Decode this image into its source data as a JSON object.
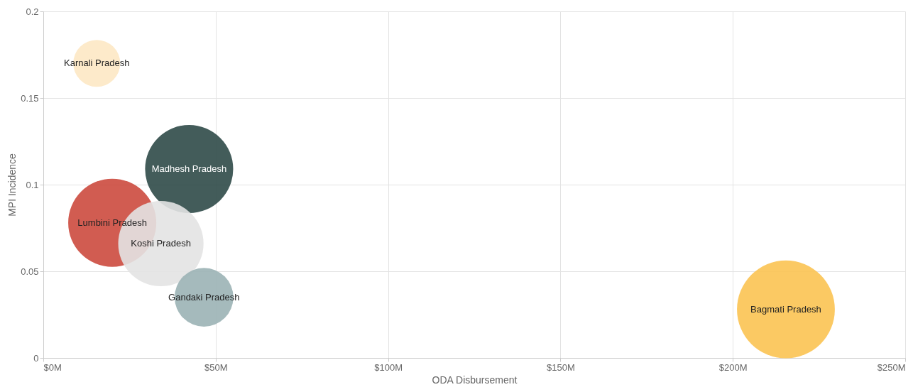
{
  "chart_data": {
    "type": "bubble",
    "xlabel": "ODA Disbursement",
    "ylabel": "MPI Incidence",
    "series": [
      {
        "name": "Karnali Pradesh",
        "color": "#fde8c4",
        "x": [
          15.5
        ],
        "values": [
          0.17
        ],
        "sizes": [
          0.23
        ]
      },
      {
        "name": "Madhesh Pradesh",
        "color": "#2f4a48",
        "x": [
          42.3
        ],
        "values": [
          0.109
        ],
        "sizes": [
          0.81
        ]
      },
      {
        "name": "Lumbini Pradesh",
        "color": "#cc4a3e",
        "x": [
          20
        ],
        "values": [
          0.078
        ],
        "sizes": [
          0.81
        ]
      },
      {
        "name": "Koshi Pradesh",
        "color": "#e3e3e3",
        "x": [
          34.1
        ],
        "values": [
          0.066
        ],
        "sizes": [
          0.76
        ]
      },
      {
        "name": "Gandaki Pradesh",
        "color": "#9bb3b5",
        "x": [
          46.6
        ],
        "values": [
          0.035
        ],
        "sizes": [
          0.36
        ]
      },
      {
        "name": "Bagmati Pradesh",
        "color": "#fbc352",
        "x": [
          215.4
        ],
        "values": [
          0.028
        ],
        "sizes": [
          1
        ]
      }
    ],
    "xlim": [
      0,
      250
    ],
    "xticks": [
      {
        "value": 0,
        "label": "$0M"
      },
      {
        "value": 50,
        "label": "$50M"
      },
      {
        "value": 100,
        "label": "$100M"
      },
      {
        "value": 150,
        "label": "$150M"
      },
      {
        "value": 200,
        "label": "$200M"
      },
      {
        "value": 250,
        "label": "$250M"
      }
    ],
    "ylim": [
      0,
      0.2
    ],
    "yticks": [
      {
        "value": 0,
        "label": "0"
      },
      0.05,
      {
        "value": 0.1,
        "label": "0.1"
      },
      0.15,
      {
        "value": 0.2,
        "label": "0.2"
      }
    ],
    "grid": true,
    "legend": false
  }
}
